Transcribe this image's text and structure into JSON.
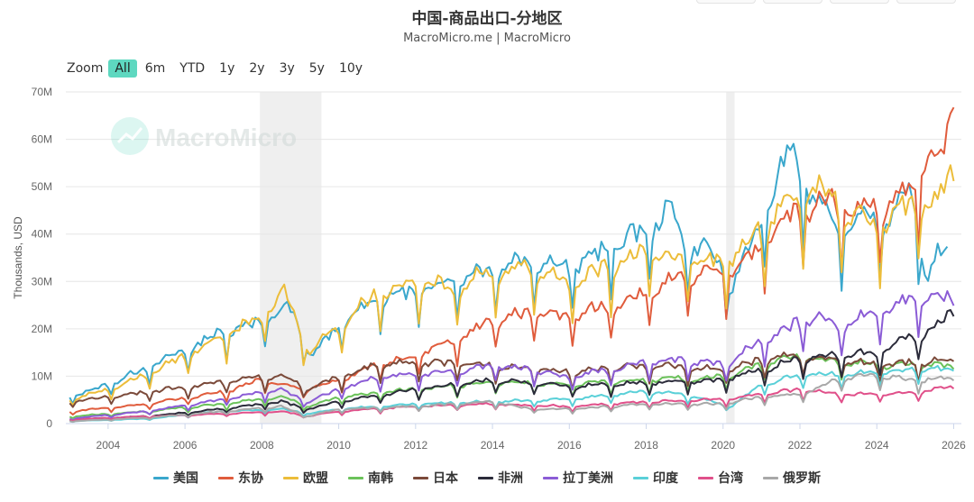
{
  "header": {
    "title": "中国-商品出口-分地区",
    "subtitle": "MacroMicro.me | MacroMicro"
  },
  "watermark": {
    "text": "MacroMicro",
    "icon": "chart-logo-icon"
  },
  "zoom": {
    "label": "Zoom",
    "options": [
      "All",
      "6m",
      "YTD",
      "1y",
      "2y",
      "3y",
      "5y",
      "10y"
    ],
    "active": "All"
  },
  "chart_data": {
    "type": "line",
    "ylabel": "Thousands, USD",
    "ylim": [
      0,
      70
    ],
    "yticks": [
      "0",
      "10M",
      "20M",
      "30M",
      "40M",
      "50M",
      "60M",
      "70M"
    ],
    "xlim": [
      2002.9,
      2026.2
    ],
    "xticks": [
      "2004",
      "2006",
      "2008",
      "2010",
      "2012",
      "2014",
      "2016",
      "2018",
      "2020",
      "2022",
      "2024",
      "2026"
    ],
    "grid": true,
    "legend_position": "bottom",
    "shaded_periods": [
      [
        2007.95,
        2009.55
      ],
      [
        2020.08,
        2020.3
      ]
    ],
    "series": [
      {
        "name": "美国",
        "color": "#3aa7cc",
        "anchors": [
          [
            2003.0,
            5.5
          ],
          [
            2004.0,
            8.0
          ],
          [
            2005.0,
            11.5
          ],
          [
            2006.0,
            15.0
          ],
          [
            2007.0,
            19.0
          ],
          [
            2008.0,
            21.0
          ],
          [
            2008.7,
            24.0
          ],
          [
            2009.1,
            17.0
          ],
          [
            2009.3,
            14.0
          ],
          [
            2010.0,
            20.0
          ],
          [
            2011.0,
            26.0
          ],
          [
            2012.0,
            27.0
          ],
          [
            2013.0,
            30.0
          ],
          [
            2014.0,
            32.0
          ],
          [
            2015.0,
            34.0
          ],
          [
            2016.0,
            32.0
          ],
          [
            2017.0,
            36.0
          ],
          [
            2018.0,
            40.0
          ],
          [
            2018.7,
            44.0
          ],
          [
            2019.0,
            37.0
          ],
          [
            2019.6,
            36.0
          ],
          [
            2020.2,
            28.0
          ],
          [
            2020.9,
            40.0
          ],
          [
            2021.4,
            50.0
          ],
          [
            2021.8,
            56.0
          ],
          [
            2022.3,
            47.0
          ],
          [
            2023.0,
            40.0
          ],
          [
            2023.6,
            43.0
          ],
          [
            2024.0,
            42.0
          ],
          [
            2024.5,
            43.0
          ],
          [
            2024.9,
            48.0
          ],
          [
            2025.3,
            30.0
          ],
          [
            2025.6,
            35.0
          ],
          [
            2025.9,
            34.0
          ]
        ]
      },
      {
        "name": "东协",
        "color": "#e05c3c",
        "anchors": [
          [
            2003.0,
            2.5
          ],
          [
            2005.0,
            4.0
          ],
          [
            2007.0,
            6.5
          ],
          [
            2008.0,
            9.0
          ],
          [
            2009.2,
            7.0
          ],
          [
            2010.0,
            9.0
          ],
          [
            2011.0,
            12.0
          ],
          [
            2012.0,
            14.0
          ],
          [
            2013.0,
            17.0
          ],
          [
            2014.0,
            21.0
          ],
          [
            2015.0,
            23.0
          ],
          [
            2016.0,
            22.0
          ],
          [
            2017.0,
            24.0
          ],
          [
            2018.0,
            27.0
          ],
          [
            2019.0,
            30.0
          ],
          [
            2020.0,
            31.0
          ],
          [
            2020.8,
            35.0
          ],
          [
            2021.4,
            40.0
          ],
          [
            2022.0,
            44.0
          ],
          [
            2022.8,
            46.0
          ],
          [
            2023.5,
            44.0
          ],
          [
            2024.2,
            45.0
          ],
          [
            2024.9,
            48.0
          ],
          [
            2025.3,
            55.0
          ],
          [
            2025.7,
            53.0
          ],
          [
            2026.0,
            66.0
          ]
        ]
      },
      {
        "name": "欧盟",
        "color": "#ecbd3a",
        "anchors": [
          [
            2003.0,
            5.0
          ],
          [
            2004.0,
            7.0
          ],
          [
            2005.0,
            10.0
          ],
          [
            2006.0,
            14.0
          ],
          [
            2007.0,
            18.0
          ],
          [
            2008.0,
            22.0
          ],
          [
            2008.6,
            27.0
          ],
          [
            2009.2,
            15.0
          ],
          [
            2010.0,
            20.0
          ],
          [
            2011.0,
            27.0
          ],
          [
            2012.0,
            29.0
          ],
          [
            2013.0,
            28.0
          ],
          [
            2014.0,
            31.0
          ],
          [
            2015.0,
            32.0
          ],
          [
            2016.0,
            29.0
          ],
          [
            2017.0,
            32.0
          ],
          [
            2018.0,
            35.0
          ],
          [
            2019.0,
            34.0
          ],
          [
            2020.0,
            33.0
          ],
          [
            2020.8,
            38.0
          ],
          [
            2021.4,
            44.0
          ],
          [
            2022.0,
            47.0
          ],
          [
            2022.6,
            48.0
          ],
          [
            2023.2,
            43.0
          ],
          [
            2024.0,
            40.0
          ],
          [
            2024.6,
            44.0
          ],
          [
            2025.0,
            46.0
          ],
          [
            2025.6,
            46.0
          ],
          [
            2026.0,
            52.0
          ]
        ]
      },
      {
        "name": "南韩",
        "color": "#6bc25a",
        "anchors": [
          [
            2003.0,
            1.5
          ],
          [
            2005.0,
            2.5
          ],
          [
            2007.0,
            4.0
          ],
          [
            2008.5,
            5.5
          ],
          [
            2009.2,
            3.5
          ],
          [
            2010.0,
            5.5
          ],
          [
            2012.0,
            7.0
          ],
          [
            2014.0,
            8.5
          ],
          [
            2016.0,
            8.0
          ],
          [
            2018.0,
            9.0
          ],
          [
            2020.0,
            9.5
          ],
          [
            2021.0,
            12.0
          ],
          [
            2022.0,
            14.0
          ],
          [
            2023.0,
            12.5
          ],
          [
            2024.0,
            12.0
          ],
          [
            2025.0,
            12.0
          ],
          [
            2026.0,
            12.0
          ]
        ]
      },
      {
        "name": "日本",
        "color": "#7b4a3a",
        "anchors": [
          [
            2003.0,
            4.5
          ],
          [
            2005.0,
            6.5
          ],
          [
            2007.0,
            8.5
          ],
          [
            2008.5,
            10.0
          ],
          [
            2009.2,
            7.0
          ],
          [
            2010.0,
            9.5
          ],
          [
            2011.0,
            12.0
          ],
          [
            2012.0,
            12.5
          ],
          [
            2014.0,
            12.0
          ],
          [
            2016.0,
            10.5
          ],
          [
            2018.0,
            12.0
          ],
          [
            2020.0,
            11.0
          ],
          [
            2021.0,
            13.0
          ],
          [
            2022.0,
            14.0
          ],
          [
            2023.0,
            13.0
          ],
          [
            2024.0,
            12.0
          ],
          [
            2025.0,
            12.5
          ],
          [
            2026.0,
            13.0
          ]
        ]
      },
      {
        "name": "非洲",
        "color": "#2b2b3a",
        "anchors": [
          [
            2003.0,
            0.8
          ],
          [
            2005.0,
            1.5
          ],
          [
            2007.0,
            3.0
          ],
          [
            2008.5,
            4.5
          ],
          [
            2009.2,
            3.0
          ],
          [
            2010.0,
            4.5
          ],
          [
            2012.0,
            7.0
          ],
          [
            2014.0,
            9.0
          ],
          [
            2016.0,
            7.5
          ],
          [
            2018.0,
            8.5
          ],
          [
            2020.0,
            9.0
          ],
          [
            2021.0,
            11.0
          ],
          [
            2022.0,
            13.5
          ],
          [
            2023.0,
            14.0
          ],
          [
            2024.0,
            14.5
          ],
          [
            2025.0,
            18.0
          ],
          [
            2025.6,
            20.0
          ],
          [
            2026.0,
            23.0
          ]
        ]
      },
      {
        "name": "拉丁美洲",
        "color": "#8b5cd6",
        "anchors": [
          [
            2003.0,
            1.0
          ],
          [
            2005.0,
            2.5
          ],
          [
            2007.0,
            5.0
          ],
          [
            2008.5,
            7.0
          ],
          [
            2009.2,
            4.5
          ],
          [
            2010.0,
            7.0
          ],
          [
            2011.0,
            9.5
          ],
          [
            2012.0,
            10.0
          ],
          [
            2013.0,
            10.5
          ],
          [
            2014.0,
            12.0
          ],
          [
            2015.0,
            11.0
          ],
          [
            2016.0,
            9.5
          ],
          [
            2017.0,
            11.0
          ],
          [
            2018.0,
            12.5
          ],
          [
            2019.0,
            13.0
          ],
          [
            2020.0,
            12.0
          ],
          [
            2021.0,
            17.0
          ],
          [
            2022.0,
            21.0
          ],
          [
            2022.5,
            22.0
          ],
          [
            2023.0,
            20.0
          ],
          [
            2024.0,
            23.0
          ],
          [
            2024.7,
            25.0
          ],
          [
            2025.3,
            26.0
          ],
          [
            2026.0,
            26.0
          ]
        ]
      },
      {
        "name": "印度",
        "color": "#5ad0d8",
        "anchors": [
          [
            2003.0,
            0.5
          ],
          [
            2005.0,
            1.0
          ],
          [
            2007.0,
            2.5
          ],
          [
            2008.5,
            3.0
          ],
          [
            2009.2,
            2.0
          ],
          [
            2010.0,
            3.0
          ],
          [
            2012.0,
            4.0
          ],
          [
            2014.0,
            4.5
          ],
          [
            2016.0,
            5.0
          ],
          [
            2018.0,
            6.5
          ],
          [
            2019.0,
            6.0
          ],
          [
            2020.2,
            3.5
          ],
          [
            2021.0,
            8.0
          ],
          [
            2022.0,
            10.0
          ],
          [
            2023.0,
            10.0
          ],
          [
            2024.0,
            10.5
          ],
          [
            2025.0,
            11.0
          ],
          [
            2026.0,
            11.0
          ]
        ]
      },
      {
        "name": "台湾",
        "color": "#e0508a",
        "anchors": [
          [
            2003.0,
            0.8
          ],
          [
            2005.0,
            1.5
          ],
          [
            2007.0,
            2.0
          ],
          [
            2008.5,
            2.5
          ],
          [
            2009.2,
            1.5
          ],
          [
            2010.0,
            2.5
          ],
          [
            2012.0,
            3.5
          ],
          [
            2014.0,
            4.0
          ],
          [
            2016.0,
            3.5
          ],
          [
            2018.0,
            4.5
          ],
          [
            2020.0,
            5.0
          ],
          [
            2021.0,
            6.0
          ],
          [
            2022.0,
            7.0
          ],
          [
            2023.0,
            6.0
          ],
          [
            2024.0,
            6.0
          ],
          [
            2025.0,
            6.5
          ],
          [
            2026.0,
            7.5
          ]
        ]
      },
      {
        "name": "俄罗斯",
        "color": "#a8a8a8",
        "anchors": [
          [
            2003.0,
            0.5
          ],
          [
            2005.0,
            1.2
          ],
          [
            2007.0,
            2.5
          ],
          [
            2008.5,
            3.5
          ],
          [
            2009.2,
            1.5
          ],
          [
            2010.0,
            3.0
          ],
          [
            2012.0,
            3.5
          ],
          [
            2014.0,
            4.5
          ],
          [
            2015.0,
            3.0
          ],
          [
            2016.0,
            3.0
          ],
          [
            2018.0,
            4.0
          ],
          [
            2020.0,
            4.0
          ],
          [
            2021.0,
            5.5
          ],
          [
            2022.0,
            6.0
          ],
          [
            2023.0,
            9.0
          ],
          [
            2024.0,
            10.0
          ],
          [
            2025.0,
            9.0
          ],
          [
            2026.0,
            9.5
          ]
        ]
      }
    ]
  }
}
